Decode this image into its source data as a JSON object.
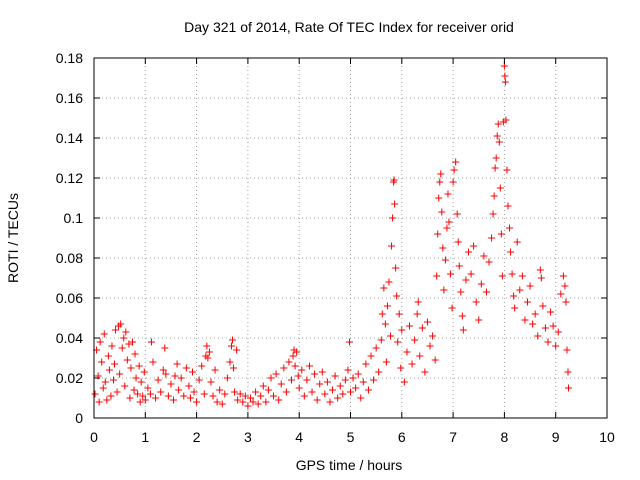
{
  "chart_data": {
    "type": "scatter",
    "title": "Day 321 of 2014, Rate Of TEC Index for receiver orid",
    "xlabel": "GPS time / hours",
    "ylabel": "ROTI / TECUs",
    "xlim": [
      0,
      10
    ],
    "ylim": [
      0,
      0.18
    ],
    "x_ticks": [
      0,
      1,
      2,
      3,
      4,
      5,
      6,
      7,
      8,
      9,
      10
    ],
    "y_ticks": [
      0,
      0.02,
      0.04,
      0.06,
      0.08,
      0.1,
      0.12,
      0.14,
      0.16,
      0.18
    ],
    "x_tick_labels": [
      "0",
      "1",
      "2",
      "3",
      "4",
      "5",
      "6",
      "7",
      "8",
      "9",
      "10"
    ],
    "y_tick_labels": [
      "0",
      "0.02",
      "0.04",
      "0.06",
      "0.08",
      "0.1",
      "0.12",
      "0.14",
      "0.16",
      "0.18"
    ],
    "grid": true,
    "marker": "+",
    "color": "#ff0000",
    "series": [
      {
        "name": "ROTI",
        "points": [
          [
            0.02,
            0.012
          ],
          [
            0.05,
            0.034
          ],
          [
            0.08,
            0.021
          ],
          [
            0.1,
            0.008
          ],
          [
            0.12,
            0.038
          ],
          [
            0.15,
            0.028
          ],
          [
            0.18,
            0.015
          ],
          [
            0.2,
            0.042
          ],
          [
            0.22,
            0.018
          ],
          [
            0.25,
            0.009
          ],
          [
            0.28,
            0.031
          ],
          [
            0.3,
            0.024
          ],
          [
            0.33,
            0.011
          ],
          [
            0.35,
            0.036
          ],
          [
            0.38,
            0.019
          ],
          [
            0.4,
            0.027
          ],
          [
            0.42,
            0.044
          ],
          [
            0.45,
            0.013
          ],
          [
            0.48,
            0.046
          ],
          [
            0.5,
            0.022
          ],
          [
            0.52,
            0.047
          ],
          [
            0.55,
            0.035
          ],
          [
            0.58,
            0.04
          ],
          [
            0.6,
            0.016
          ],
          [
            0.62,
            0.043
          ],
          [
            0.65,
            0.029
          ],
          [
            0.68,
            0.037
          ],
          [
            0.7,
            0.01
          ],
          [
            0.72,
            0.025
          ],
          [
            0.75,
            0.038
          ],
          [
            0.78,
            0.014
          ],
          [
            0.8,
            0.032
          ],
          [
            0.82,
            0.02
          ],
          [
            0.85,
            0.012
          ],
          [
            0.88,
            0.026
          ],
          [
            0.9,
            0.008
          ],
          [
            0.92,
            0.018
          ],
          [
            0.95,
            0.011
          ],
          [
            0.98,
            0.023
          ],
          [
            1.0,
            0.009
          ],
          [
            1.05,
            0.015
          ],
          [
            1.1,
            0.012
          ],
          [
            1.12,
            0.038
          ],
          [
            1.15,
            0.028
          ],
          [
            1.2,
            0.01
          ],
          [
            1.25,
            0.019
          ],
          [
            1.3,
            0.013
          ],
          [
            1.35,
            0.024
          ],
          [
            1.38,
            0.035
          ],
          [
            1.4,
            0.022
          ],
          [
            1.45,
            0.011
          ],
          [
            1.5,
            0.017
          ],
          [
            1.55,
            0.009
          ],
          [
            1.58,
            0.021
          ],
          [
            1.62,
            0.027
          ],
          [
            1.65,
            0.014
          ],
          [
            1.7,
            0.02
          ],
          [
            1.75,
            0.011
          ],
          [
            1.8,
            0.025
          ],
          [
            1.85,
            0.016
          ],
          [
            1.88,
            0.01
          ],
          [
            1.92,
            0.023
          ],
          [
            1.95,
            0.013
          ],
          [
            2.0,
            0.008
          ],
          [
            2.05,
            0.019
          ],
          [
            2.1,
            0.026
          ],
          [
            2.15,
            0.012
          ],
          [
            2.18,
            0.031
          ],
          [
            2.2,
            0.036
          ],
          [
            2.22,
            0.03
          ],
          [
            2.25,
            0.033
          ],
          [
            2.28,
            0.018
          ],
          [
            2.32,
            0.011
          ],
          [
            2.36,
            0.024
          ],
          [
            2.4,
            0.008
          ],
          [
            2.45,
            0.014
          ],
          [
            2.5,
            0.007
          ],
          [
            2.55,
            0.012
          ],
          [
            2.6,
            0.02
          ],
          [
            2.65,
            0.028
          ],
          [
            2.68,
            0.036
          ],
          [
            2.7,
            0.039
          ],
          [
            2.72,
            0.025
          ],
          [
            2.74,
            0.013
          ],
          [
            2.78,
            0.034
          ],
          [
            2.8,
            0.009
          ],
          [
            2.85,
            0.012
          ],
          [
            2.9,
            0.008
          ],
          [
            2.95,
            0.011
          ],
          [
            3.0,
            0.006
          ],
          [
            3.05,
            0.01
          ],
          [
            3.1,
            0.008
          ],
          [
            3.15,
            0.013
          ],
          [
            3.2,
            0.007
          ],
          [
            3.25,
            0.011
          ],
          [
            3.3,
            0.016
          ],
          [
            3.35,
            0.008
          ],
          [
            3.4,
            0.014
          ],
          [
            3.45,
            0.02
          ],
          [
            3.5,
            0.011
          ],
          [
            3.55,
            0.022
          ],
          [
            3.6,
            0.009
          ],
          [
            3.65,
            0.017
          ],
          [
            3.7,
            0.025
          ],
          [
            3.75,
            0.013
          ],
          [
            3.8,
            0.028
          ],
          [
            3.85,
            0.019
          ],
          [
            3.88,
            0.031
          ],
          [
            3.9,
            0.034
          ],
          [
            3.92,
            0.026
          ],
          [
            3.95,
            0.033
          ],
          [
            3.98,
            0.021
          ],
          [
            4.0,
            0.015
          ],
          [
            4.05,
            0.024
          ],
          [
            4.1,
            0.011
          ],
          [
            4.15,
            0.019
          ],
          [
            4.2,
            0.026
          ],
          [
            4.25,
            0.013
          ],
          [
            4.3,
            0.022
          ],
          [
            4.35,
            0.009
          ],
          [
            4.4,
            0.017
          ],
          [
            4.45,
            0.023
          ],
          [
            4.5,
            0.012
          ],
          [
            4.55,
            0.018
          ],
          [
            4.6,
            0.008
          ],
          [
            4.65,
            0.014
          ],
          [
            4.7,
            0.021
          ],
          [
            4.75,
            0.01
          ],
          [
            4.8,
            0.016
          ],
          [
            4.85,
            0.012
          ],
          [
            4.9,
            0.019
          ],
          [
            4.95,
            0.024
          ],
          [
            4.98,
            0.038
          ],
          [
            5.0,
            0.013
          ],
          [
            5.05,
            0.02
          ],
          [
            5.1,
            0.015
          ],
          [
            5.15,
            0.022
          ],
          [
            5.2,
            0.01
          ],
          [
            5.25,
            0.018
          ],
          [
            5.3,
            0.027
          ],
          [
            5.35,
            0.014
          ],
          [
            5.4,
            0.031
          ],
          [
            5.45,
            0.019
          ],
          [
            5.5,
            0.035
          ],
          [
            5.55,
            0.023
          ],
          [
            5.6,
            0.039
          ],
          [
            5.62,
            0.052
          ],
          [
            5.65,
            0.065
          ],
          [
            5.68,
            0.047
          ],
          [
            5.7,
            0.028
          ],
          [
            5.72,
            0.056
          ],
          [
            5.75,
            0.068
          ],
          [
            5.78,
            0.041
          ],
          [
            5.8,
            0.086
          ],
          [
            5.82,
            0.1
          ],
          [
            5.84,
            0.118
          ],
          [
            5.85,
            0.119
          ],
          [
            5.86,
            0.107
          ],
          [
            5.88,
            0.075
          ],
          [
            5.9,
            0.061
          ],
          [
            5.92,
            0.038
          ],
          [
            5.95,
            0.052
          ],
          [
            5.98,
            0.025
          ],
          [
            6.0,
            0.044
          ],
          [
            6.05,
            0.018
          ],
          [
            6.1,
            0.033
          ],
          [
            6.15,
            0.046
          ],
          [
            6.2,
            0.027
          ],
          [
            6.25,
            0.039
          ],
          [
            6.3,
            0.052
          ],
          [
            6.32,
            0.058
          ],
          [
            6.35,
            0.031
          ],
          [
            6.4,
            0.045
          ],
          [
            6.45,
            0.023
          ],
          [
            6.5,
            0.048
          ],
          [
            6.55,
            0.036
          ],
          [
            6.6,
            0.041
          ],
          [
            6.65,
            0.029
          ],
          [
            6.68,
            0.071
          ],
          [
            6.7,
            0.092
          ],
          [
            6.72,
            0.11
          ],
          [
            6.74,
            0.118
          ],
          [
            6.76,
            0.122
          ],
          [
            6.78,
            0.103
          ],
          [
            6.8,
            0.085
          ],
          [
            6.82,
            0.064
          ],
          [
            6.85,
            0.079
          ],
          [
            6.88,
            0.095
          ],
          [
            6.9,
            0.112
          ],
          [
            6.92,
            0.098
          ],
          [
            6.95,
            0.072
          ],
          [
            6.98,
            0.055
          ],
          [
            7.0,
            0.118
          ],
          [
            7.02,
            0.124
          ],
          [
            7.05,
            0.128
          ],
          [
            7.08,
            0.102
          ],
          [
            7.1,
            0.088
          ],
          [
            7.12,
            0.076
          ],
          [
            7.15,
            0.063
          ],
          [
            7.18,
            0.051
          ],
          [
            7.2,
            0.044
          ],
          [
            7.25,
            0.069
          ],
          [
            7.3,
            0.083
          ],
          [
            7.35,
            0.072
          ],
          [
            7.4,
            0.086
          ],
          [
            7.45,
            0.058
          ],
          [
            7.5,
            0.049
          ],
          [
            7.55,
            0.067
          ],
          [
            7.6,
            0.081
          ],
          [
            7.65,
            0.063
          ],
          [
            7.7,
            0.078
          ],
          [
            7.75,
            0.09
          ],
          [
            7.78,
            0.102
          ],
          [
            7.8,
            0.111
          ],
          [
            7.82,
            0.125
          ],
          [
            7.84,
            0.13
          ],
          [
            7.86,
            0.141
          ],
          [
            7.88,
            0.147
          ],
          [
            7.9,
            0.138
          ],
          [
            7.92,
            0.115
          ],
          [
            7.94,
            0.092
          ],
          [
            7.96,
            0.071
          ],
          [
            7.98,
            0.148
          ],
          [
            8.0,
            0.176
          ],
          [
            8.01,
            0.171
          ],
          [
            8.02,
            0.168
          ],
          [
            8.03,
            0.149
          ],
          [
            8.05,
            0.124
          ],
          [
            8.07,
            0.106
          ],
          [
            8.1,
            0.095
          ],
          [
            8.12,
            0.083
          ],
          [
            8.15,
            0.072
          ],
          [
            8.18,
            0.061
          ],
          [
            8.2,
            0.055
          ],
          [
            8.25,
            0.088
          ],
          [
            8.3,
            0.064
          ],
          [
            8.35,
            0.071
          ],
          [
            8.4,
            0.049
          ],
          [
            8.45,
            0.058
          ],
          [
            8.5,
            0.066
          ],
          [
            8.55,
            0.047
          ],
          [
            8.6,
            0.052
          ],
          [
            8.65,
            0.041
          ],
          [
            8.7,
            0.074
          ],
          [
            8.72,
            0.07
          ],
          [
            8.75,
            0.056
          ],
          [
            8.8,
            0.045
          ],
          [
            8.85,
            0.038
          ],
          [
            8.9,
            0.053
          ],
          [
            8.95,
            0.046
          ],
          [
            9.0,
            0.036
          ],
          [
            9.05,
            0.043
          ],
          [
            9.1,
            0.062
          ],
          [
            9.15,
            0.071
          ],
          [
            9.18,
            0.066
          ],
          [
            9.2,
            0.058
          ],
          [
            9.22,
            0.034
          ],
          [
            9.24,
            0.023
          ],
          [
            9.25,
            0.015
          ]
        ]
      }
    ]
  }
}
